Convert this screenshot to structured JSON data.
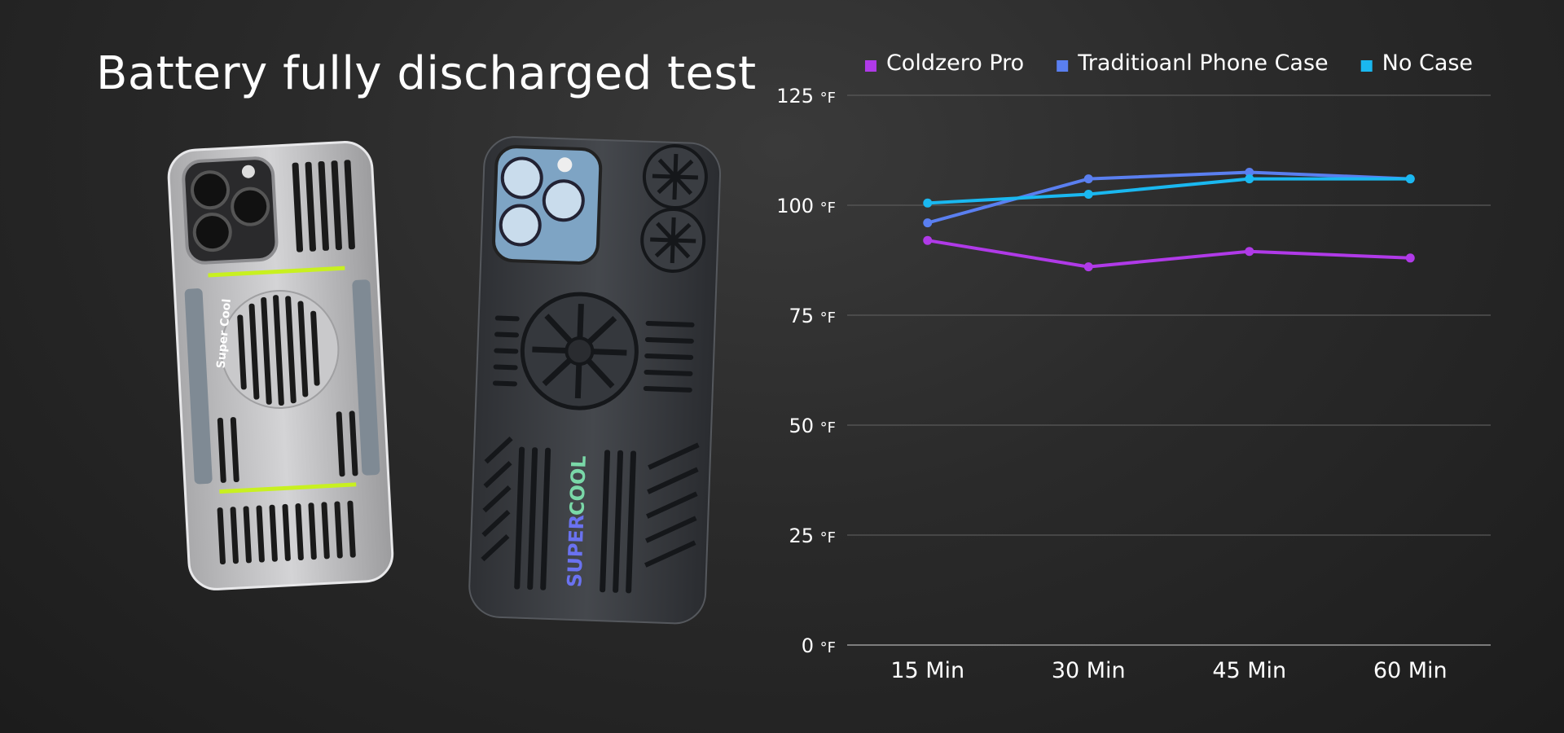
{
  "title": "Battery fully discharged test",
  "product_images": {
    "left_case_text": "Super Cool",
    "right_case_word1": "SUPER",
    "right_case_word2": "COOL"
  },
  "chart_data": {
    "type": "line",
    "categories": [
      "15 Min",
      "30 Min",
      "45 Min",
      "60 Min"
    ],
    "series": [
      {
        "name": "Coldzero Pro",
        "color": "#b03ae8",
        "values": [
          92,
          86,
          89.5,
          88
        ]
      },
      {
        "name": "Traditioanl Phone Case",
        "color": "#5a7ff0",
        "values": [
          96,
          106,
          107.5,
          106
        ]
      },
      {
        "name": "No Case",
        "color": "#1ab8f0",
        "values": [
          100.5,
          102.5,
          106,
          106
        ]
      }
    ],
    "y_ticks": [
      "0",
      "25",
      "50",
      "75",
      "100",
      "125"
    ],
    "y_unit": "°F",
    "ylim": [
      0,
      125
    ],
    "grid": true,
    "legend": "top"
  }
}
